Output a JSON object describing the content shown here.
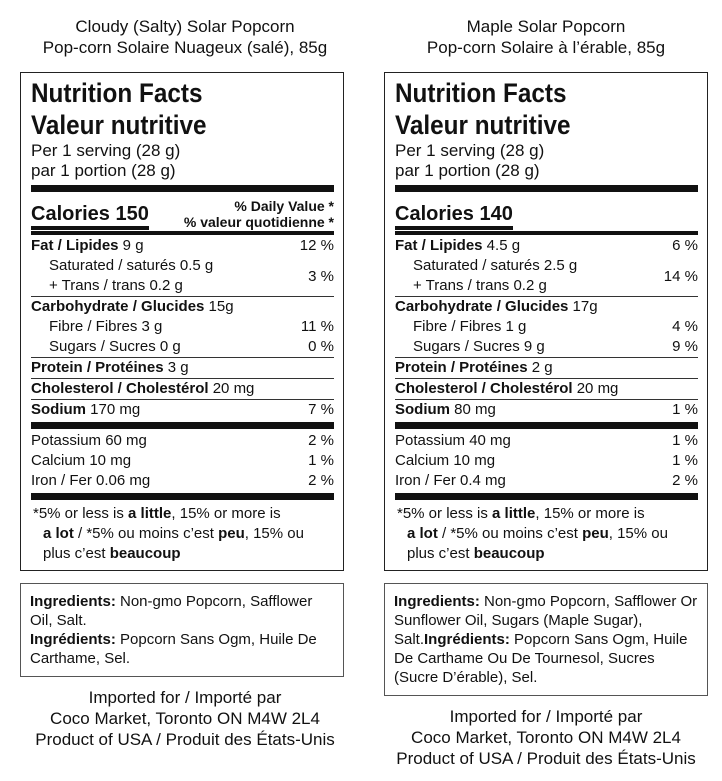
{
  "products": [
    {
      "name_en": "Cloudy (Salty) Solar Popcorn",
      "name_fr": "Pop-corn Solaire Nuageux (salé), 85g",
      "title_en": "Nutrition Facts",
      "title_fr": "Valeur nutritive",
      "serving_en": "Per 1 serving (28 g)",
      "serving_fr": "par 1 portion (28 g)",
      "calories": "Calories 150",
      "dv_en": "% Daily Value *",
      "dv_fr": "% valeur quotidienne *",
      "fat_label": "Fat / Lipides",
      "fat_amt": " 9 g",
      "fat_dv": "12 %",
      "sat": "Saturated / saturés 0.5 g",
      "trans": "+ Trans / trans 0.2 g",
      "sat_trans_dv": "3 %",
      "carb_label": "Carbohydrate / Glucides",
      "carb_amt": " 15g",
      "fibre": "Fibre / Fibres 3 g",
      "fibre_dv": "11 %",
      "sugars": "Sugars / Sucres 0 g",
      "sugars_dv": "0 %",
      "protein_label": "Protein / Protéines",
      "protein_amt": " 3 g",
      "chol_label": "Cholesterol / Cholestérol",
      "chol_amt": " 20 mg",
      "sodium_label": "Sodium",
      "sodium_amt": " 170 mg",
      "sodium_dv": "7 %",
      "potassium": "Potassium 60 mg",
      "potassium_dv": "2 %",
      "calcium": "Calcium 10 mg",
      "calcium_dv": "1 %",
      "iron": "Iron / Fer 0.06 mg",
      "iron_dv": "2 %",
      "foot_1a": "*5% or less is ",
      "foot_1b": "a little",
      "foot_1c": ", 15% or more is",
      "foot_2a": "a lot",
      "foot_2b": " / *5% ou moins c’est ",
      "foot_2c": "peu",
      "foot_2d": ", 15% ou",
      "foot_3a": "plus c’est ",
      "foot_3b": "beaucoup",
      "ing_en_label": "Ingredients:",
      "ing_en": " Non-gmo Popcorn, Safflower Oil, Salt.",
      "ing_fr_label": "Ingrédients:",
      "ing_fr": " Popcorn Sans Ogm, Huile De Carthame, Sel.",
      "import_1": "Imported for / Importé par",
      "import_2": "Coco Market, Toronto ON M4W 2L4",
      "import_3": "Product of USA / Produit des États-Unis"
    },
    {
      "name_en": "Maple Solar Popcorn",
      "name_fr": "Pop-corn Solaire à l’érable, 85g",
      "title_en": "Nutrition Facts",
      "title_fr": "Valeur nutritive",
      "serving_en": "Per 1 serving (28 g)",
      "serving_fr": "par 1 portion (28 g)",
      "calories": "Calories 140",
      "dv_en": "",
      "dv_fr": "",
      "fat_label": "Fat / Lipides",
      "fat_amt": " 4.5 g",
      "fat_dv": "6 %",
      "sat": "Saturated / saturés 2.5 g",
      "trans": "+ Trans / trans 0.2 g",
      "sat_trans_dv": "14 %",
      "carb_label": "Carbohydrate / Glucides",
      "carb_amt": " 17g",
      "fibre": "Fibre / Fibres 1 g",
      "fibre_dv": "4 %",
      "sugars": "Sugars / Sucres 9 g",
      "sugars_dv": "9 %",
      "protein_label": "Protein / Protéines",
      "protein_amt": " 2 g",
      "chol_label": "Cholesterol / Cholestérol",
      "chol_amt": " 20 mg",
      "sodium_label": "Sodium",
      "sodium_amt": " 80 mg",
      "sodium_dv": "1 %",
      "potassium": "Potassium 40 mg",
      "potassium_dv": "1 %",
      "calcium": "Calcium 10 mg",
      "calcium_dv": "1 %",
      "iron": "Iron / Fer 0.4 mg",
      "iron_dv": "2 %",
      "foot_1a": "*5% or less is ",
      "foot_1b": "a little",
      "foot_1c": ", 15% or more is",
      "foot_2a": "a lot",
      "foot_2b": " / *5% ou moins c’est ",
      "foot_2c": "peu",
      "foot_2d": ", 15% ou",
      "foot_3a": "plus c’est ",
      "foot_3b": "beaucoup",
      "ing_en_label": "Ingredients:",
      "ing_en": " Non-gmo Popcorn, Safflower Or Sunflower Oil, Sugars (Maple Sugar), Salt.",
      "ing_fr_label": "Ingrédients:",
      "ing_fr": " Popcorn Sans Ogm, Huile De Carthame Ou De Tournesol, Sucres (Sucre D’érable), Sel.",
      "import_1": "Imported for / Importé par",
      "import_2": "Coco Market, Toronto ON M4W 2L4",
      "import_3": "Product of USA / Produit des États-Unis"
    }
  ]
}
